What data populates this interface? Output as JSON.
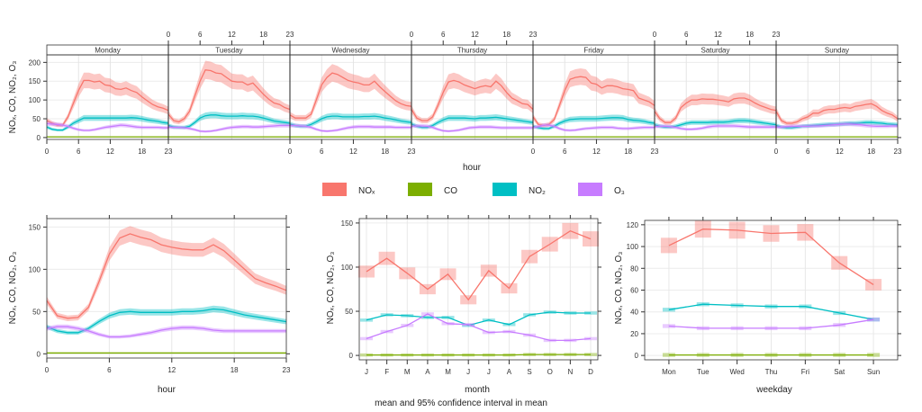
{
  "colors": {
    "NOx": "#F8766D",
    "CO": "#7CAE00",
    "NO2": "#00BFC4",
    "O3": "#C77CFF"
  },
  "legend": [
    {
      "key": "NOx",
      "label": "NOₓ"
    },
    {
      "key": "CO",
      "label": "CO"
    },
    {
      "key": "NO2",
      "label": "NO₂"
    },
    {
      "key": "O3",
      "label": "O₃"
    }
  ],
  "ylabel": "NOₓ, CO, NO₂, O₃",
  "caption": "mean and 95% confidence interval in mean",
  "chart_data": [
    {
      "type": "line",
      "panel": "day-hour",
      "xlabel": "hour",
      "days": [
        "Monday",
        "Tuesday",
        "Wednesday",
        "Thursday",
        "Friday",
        "Saturday",
        "Sunday"
      ],
      "x_ticks": [
        0,
        6,
        12,
        18,
        23
      ],
      "ylim": [
        -5,
        220
      ],
      "y_ticks": [
        0,
        50,
        100,
        150,
        200
      ],
      "grid": true,
      "ci_fraction": 0.13,
      "series": {
        "NOx": [
          [
            45,
            38,
            33,
            33,
            55,
            90,
            125,
            152,
            152,
            148,
            150,
            140,
            138,
            130,
            128,
            132,
            125,
            120,
            108,
            98,
            88,
            82,
            78,
            72
          ],
          [
            62,
            45,
            42,
            50,
            70,
            110,
            150,
            180,
            178,
            172,
            170,
            160,
            150,
            148,
            148,
            140,
            145,
            130,
            115,
            102,
            92,
            88,
            80,
            75
          ],
          [
            60,
            52,
            52,
            52,
            62,
            100,
            140,
            160,
            172,
            168,
            160,
            152,
            148,
            145,
            140,
            140,
            150,
            135,
            122,
            110,
            98,
            90,
            85,
            83
          ],
          [
            75,
            52,
            45,
            45,
            55,
            85,
            120,
            148,
            152,
            148,
            140,
            135,
            130,
            135,
            138,
            135,
            150,
            138,
            120,
            105,
            98,
            90,
            88,
            75
          ],
          [
            55,
            35,
            32,
            35,
            48,
            85,
            125,
            155,
            160,
            162,
            160,
            145,
            142,
            132,
            138,
            138,
            135,
            130,
            128,
            125,
            105,
            100,
            95,
            85
          ],
          [
            70,
            50,
            40,
            40,
            52,
            80,
            92,
            100,
            100,
            103,
            102,
            102,
            100,
            98,
            95,
            103,
            105,
            105,
            100,
            92,
            85,
            80,
            75,
            72
          ],
          [
            70,
            45,
            38,
            38,
            42,
            50,
            55,
            65,
            65,
            72,
            75,
            75,
            78,
            80,
            78,
            83,
            85,
            88,
            90,
            83,
            72,
            65,
            60,
            50
          ]
        ],
        "NO2": [
          [
            28,
            22,
            20,
            20,
            28,
            38,
            45,
            52,
            52,
            52,
            52,
            52,
            52,
            52,
            52,
            52,
            53,
            52,
            50,
            47,
            45,
            43,
            40,
            38
          ],
          [
            32,
            28,
            27,
            27,
            30,
            40,
            52,
            58,
            60,
            60,
            58,
            57,
            57,
            57,
            58,
            57,
            57,
            55,
            52,
            48,
            44,
            42,
            40,
            38
          ],
          [
            36,
            32,
            30,
            30,
            35,
            42,
            50,
            55,
            57,
            57,
            55,
            55,
            55,
            55,
            56,
            56,
            57,
            55,
            52,
            50,
            47,
            44,
            42,
            40
          ],
          [
            36,
            30,
            27,
            27,
            32,
            40,
            47,
            52,
            52,
            52,
            52,
            51,
            50,
            52,
            52,
            53,
            54,
            52,
            50,
            48,
            46,
            44,
            42,
            40
          ],
          [
            30,
            26,
            24,
            24,
            30,
            38,
            44,
            48,
            49,
            50,
            50,
            50,
            50,
            51,
            52,
            53,
            53,
            52,
            48,
            46,
            45,
            43,
            40,
            38
          ],
          [
            34,
            30,
            28,
            28,
            30,
            34,
            38,
            40,
            40,
            40,
            40,
            41,
            41,
            41,
            42,
            44,
            45,
            45,
            44,
            42,
            40,
            38,
            36,
            34
          ],
          [
            32,
            28,
            26,
            26,
            28,
            30,
            31,
            32,
            33,
            34,
            35,
            35,
            36,
            37,
            38,
            38,
            39,
            40,
            40,
            39,
            38,
            36,
            35,
            34
          ]
        ],
        "O3": [
          [
            37,
            36,
            35,
            33,
            30,
            25,
            21,
            19,
            19,
            21,
            24,
            27,
            29,
            31,
            33,
            32,
            30,
            28,
            27,
            27,
            27,
            27,
            26,
            26
          ],
          [
            28,
            27,
            27,
            26,
            24,
            21,
            17,
            16,
            17,
            19,
            22,
            25,
            27,
            28,
            29,
            29,
            28,
            28,
            29,
            30,
            31,
            32,
            32,
            32
          ],
          [
            32,
            32,
            31,
            30,
            27,
            22,
            18,
            17,
            18,
            20,
            23,
            26,
            28,
            29,
            29,
            29,
            28,
            28,
            28,
            28,
            27,
            27,
            27,
            27
          ],
          [
            30,
            31,
            31,
            30,
            27,
            22,
            18,
            17,
            18,
            20,
            23,
            26,
            27,
            28,
            28,
            28,
            27,
            26,
            26,
            26,
            26,
            26,
            26,
            26
          ],
          [
            27,
            29,
            33,
            33,
            30,
            24,
            20,
            19,
            20,
            22,
            24,
            25,
            26,
            27,
            27,
            27,
            25,
            24,
            24,
            25,
            26,
            27,
            27,
            27
          ],
          [
            29,
            30,
            30,
            29,
            27,
            24,
            22,
            22,
            23,
            25,
            28,
            30,
            31,
            31,
            31,
            31,
            30,
            29,
            28,
            28,
            28,
            28,
            28,
            28
          ],
          [
            28,
            28,
            29,
            30,
            30,
            30,
            30,
            31,
            31,
            32,
            33,
            34,
            35,
            36,
            36,
            35,
            34,
            32,
            31,
            30,
            30,
            30,
            31,
            31
          ]
        ],
        "CO": [
          [
            2,
            2,
            2,
            2,
            2,
            2,
            2,
            2,
            2,
            2,
            2,
            2,
            2,
            2,
            2,
            2,
            2,
            2,
            2,
            2,
            2,
            2,
            2,
            2
          ],
          [
            2,
            2,
            2,
            2,
            2,
            2,
            2,
            2,
            2,
            2,
            2,
            2,
            2,
            2,
            2,
            2,
            2,
            2,
            2,
            2,
            2,
            2,
            2,
            2
          ],
          [
            2,
            2,
            2,
            2,
            2,
            2,
            2,
            2,
            2,
            2,
            2,
            2,
            2,
            2,
            2,
            2,
            2,
            2,
            2,
            2,
            2,
            2,
            2,
            2
          ],
          [
            2,
            2,
            2,
            2,
            2,
            2,
            2,
            2,
            2,
            2,
            2,
            2,
            2,
            2,
            2,
            2,
            2,
            2,
            2,
            2,
            2,
            2,
            2,
            2
          ],
          [
            2,
            2,
            2,
            2,
            2,
            2,
            2,
            2,
            2,
            2,
            2,
            2,
            2,
            2,
            2,
            2,
            2,
            2,
            2,
            2,
            2,
            2,
            2,
            2
          ],
          [
            2,
            2,
            2,
            2,
            2,
            2,
            2,
            2,
            2,
            2,
            2,
            2,
            2,
            2,
            2,
            2,
            2,
            2,
            2,
            2,
            2,
            2,
            2,
            2
          ],
          [
            2,
            2,
            2,
            2,
            2,
            2,
            2,
            2,
            2,
            2,
            2,
            2,
            2,
            2,
            2,
            2,
            2,
            2,
            2,
            2,
            2,
            2,
            2,
            2
          ]
        ]
      }
    },
    {
      "type": "line",
      "panel": "hour",
      "xlabel": "hour",
      "x": [
        0,
        1,
        2,
        3,
        4,
        5,
        6,
        7,
        8,
        9,
        10,
        11,
        12,
        13,
        14,
        15,
        16,
        17,
        18,
        19,
        20,
        21,
        22,
        23
      ],
      "x_ticks": [
        0,
        6,
        12,
        18,
        23
      ],
      "ylim": [
        -5,
        160
      ],
      "y_ticks": [
        0,
        50,
        100,
        150
      ],
      "grid": true,
      "ci_fraction": 0.06,
      "series": {
        "NOx": [
          63,
          45,
          42,
          43,
          55,
          85,
          118,
          137,
          142,
          138,
          135,
          129,
          126,
          124,
          123,
          123,
          129,
          122,
          111,
          100,
          89,
          84,
          80,
          75
        ],
        "NO2": [
          32,
          27,
          25,
          25,
          30,
          38,
          45,
          49,
          50,
          49,
          49,
          49,
          49,
          50,
          50,
          51,
          53,
          52,
          49,
          46,
          44,
          42,
          40,
          38
        ],
        "O3": [
          30,
          32,
          32,
          30,
          27,
          23,
          20,
          20,
          21,
          23,
          25,
          28,
          30,
          31,
          31,
          30,
          28,
          27,
          27,
          27,
          27,
          27,
          27,
          27
        ],
        "CO": [
          1,
          1,
          1,
          1,
          1,
          1,
          1,
          1,
          1,
          1,
          1,
          1,
          1,
          1,
          1,
          1,
          1,
          1,
          1,
          1,
          1,
          1,
          1,
          1
        ]
      }
    },
    {
      "type": "line",
      "panel": "month",
      "xlabel": "month",
      "categories": [
        "J",
        "F",
        "M",
        "A",
        "M",
        "J",
        "J",
        "A",
        "S",
        "O",
        "N",
        "D"
      ],
      "ylim": [
        -5,
        155
      ],
      "y_ticks": [
        0,
        50,
        100,
        150
      ],
      "grid": true,
      "series": {
        "NOx": [
          95,
          110,
          93,
          75,
          92,
          63,
          96,
          76,
          112,
          126,
          141,
          132
        ],
        "NO2": [
          40,
          46,
          45,
          43,
          43,
          34,
          40,
          35,
          46,
          49,
          48,
          48
        ],
        "O3": [
          19,
          27,
          34,
          47,
          36,
          35,
          26,
          27,
          23,
          17,
          17,
          19
        ],
        "CO": [
          0.5,
          0.5,
          0.5,
          0.5,
          0.5,
          0.5,
          0.5,
          0.5,
          1,
          1,
          1,
          1
        ]
      }
    },
    {
      "type": "line",
      "panel": "weekday",
      "xlabel": "weekday",
      "categories": [
        "Mon",
        "Tue",
        "Wed",
        "Thu",
        "Fri",
        "Sat",
        "Sun"
      ],
      "ylim": [
        -4,
        124
      ],
      "y_ticks": [
        0,
        20,
        40,
        60,
        80,
        100,
        120
      ],
      "grid": true,
      "series": {
        "NOx": [
          101,
          116,
          115,
          112,
          113,
          85,
          65
        ],
        "NO2": [
          42,
          47,
          46,
          45,
          45,
          39,
          33
        ],
        "O3": [
          27,
          25,
          25,
          25,
          25,
          28,
          33
        ],
        "CO": [
          0.5,
          0.5,
          0.5,
          0.5,
          0.5,
          0.5,
          0.5
        ]
      }
    }
  ]
}
